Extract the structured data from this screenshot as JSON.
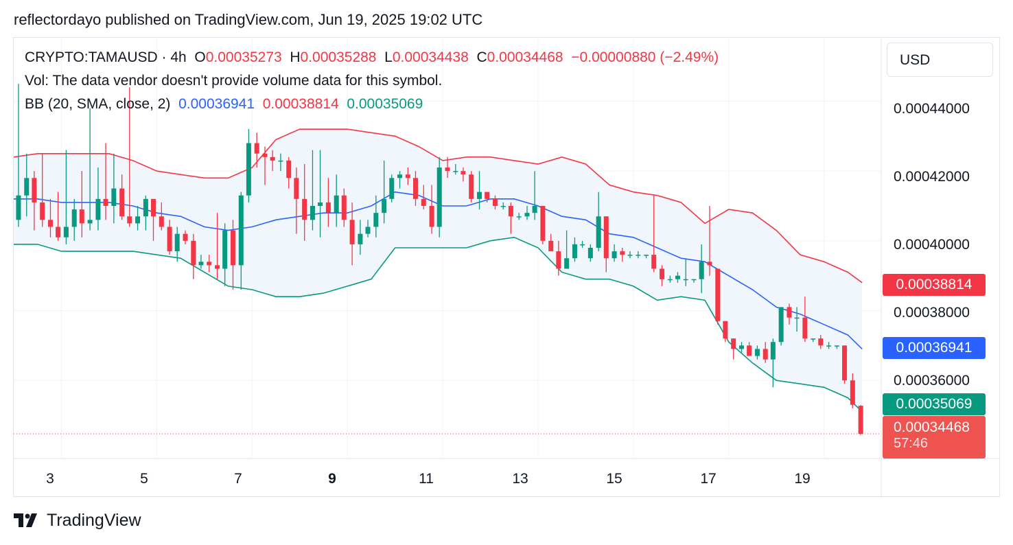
{
  "header": {
    "published_text": "reflectordayo published on TradingView.com, Jun 19, 2025 19:02 UTC"
  },
  "legend": {
    "symbol": "CRYPTO:TAMAUSD · 4h",
    "o_label": "O",
    "o_value": "0.00035273",
    "h_label": "H",
    "h_value": "0.00035288",
    "l_label": "L",
    "l_value": "0.00034438",
    "c_label": "C",
    "c_value": "0.00034468",
    "change": "−0.00000880 (−2.49%)",
    "vol_text": "Vol: The data vendor doesn't provide volume data for this symbol.",
    "bb_label": "BB (20, SMA, close, 2)",
    "bb_basis": "0.00036941",
    "bb_upper": "0.00038814",
    "bb_lower": "0.00035069"
  },
  "currency": "USD",
  "price_scale": {
    "ticks": [
      "0.00044000",
      "0.00042000",
      "0.00040000",
      "0.00038000",
      "0.00036000"
    ],
    "tag_upper": "0.00038814",
    "tag_basis": "0.00036941",
    "tag_lower": "0.00035069",
    "tag_last": "0.00034468",
    "countdown": "57:46"
  },
  "time_scale": {
    "ticks": [
      "3",
      "5",
      "7",
      "9",
      "11",
      "13",
      "15",
      "17",
      "19"
    ]
  },
  "brand": {
    "name": "TradingView"
  },
  "colors": {
    "up": "#089981",
    "down": "#f23645",
    "basis": "#2962ff",
    "upper": "#f23645",
    "lower": "#089981",
    "fill": "#f0f6fc"
  },
  "chart_data": {
    "type": "candlestick",
    "timeframe": "4h",
    "y_range": [
      0.000338,
      0.000458
    ],
    "x_range_days": [
      2.0,
      20.2
    ],
    "x_ticks": [
      3,
      5,
      7,
      9,
      11,
      13,
      15,
      17,
      19
    ],
    "y_ticks": [
      0.00044,
      0.00042,
      0.0004,
      0.00038,
      0.00036
    ],
    "candles": [
      [
        2.1,
        0.000406,
        0.000445,
        0.000404,
        0.000413
      ],
      [
        2.27,
        0.000413,
        0.000425,
        0.000407,
        0.000418
      ],
      [
        2.43,
        0.000418,
        0.00042,
        0.000403,
        0.000411
      ],
      [
        2.6,
        0.000411,
        0.000425,
        0.000404,
        0.000406
      ],
      [
        2.77,
        0.000406,
        0.000412,
        0.000401,
        0.000404
      ],
      [
        2.93,
        0.000404,
        0.000414,
        0.0004,
        0.000401
      ],
      [
        3.1,
        0.000401,
        0.000426,
        0.000399,
        0.000404
      ],
      [
        3.27,
        0.000404,
        0.000412,
        0.0004,
        0.000409
      ],
      [
        3.43,
        0.000409,
        0.00042,
        0.000401,
        0.000405
      ],
      [
        3.6,
        0.000405,
        0.000438,
        0.000403,
        0.000406
      ],
      [
        3.77,
        0.000406,
        0.000421,
        0.000403,
        0.000412
      ],
      [
        3.93,
        0.000412,
        0.000428,
        0.000406,
        0.00041
      ],
      [
        4.1,
        0.00041,
        0.000425,
        0.000405,
        0.000415
      ],
      [
        4.27,
        0.000415,
        0.000419,
        0.000406,
        0.000407
      ],
      [
        4.43,
        0.000407,
        0.000444,
        0.000404,
        0.000405
      ],
      [
        4.6,
        0.000405,
        0.00041,
        0.000403,
        0.000407
      ],
      [
        4.77,
        0.000407,
        0.000413,
        0.000403,
        0.000412
      ],
      [
        4.93,
        0.000412,
        0.000412,
        0.0004,
        0.000407
      ],
      [
        5.1,
        0.000407,
        0.000411,
        0.000403,
        0.000404
      ],
      [
        5.27,
        0.000404,
        0.000406,
        0.000396,
        0.000397
      ],
      [
        5.43,
        0.000397,
        0.000404,
        0.000394,
        0.000402
      ],
      [
        5.6,
        0.000402,
        0.000403,
        0.000399,
        0.0004
      ],
      [
        5.77,
        0.0004,
        0.000402,
        0.000389,
        0.000393
      ],
      [
        5.93,
        0.000393,
        0.000396,
        0.000392,
        0.000394
      ],
      [
        6.1,
        0.000394,
        0.000396,
        0.000391,
        0.000393
      ],
      [
        6.27,
        0.000393,
        0.000408,
        0.000389,
        0.000392
      ],
      [
        6.43,
        0.000392,
        0.000405,
        0.000387,
        0.000403
      ],
      [
        6.6,
        0.000403,
        0.000406,
        0.000386,
        0.000393
      ],
      [
        6.77,
        0.000393,
        0.000414,
        0.000386,
        0.000413
      ],
      [
        6.93,
        0.000413,
        0.000432,
        0.000411,
        0.000428
      ],
      [
        7.1,
        0.000428,
        0.000431,
        0.000421,
        0.000425
      ],
      [
        7.27,
        0.000425,
        0.000427,
        0.000416,
        0.000424
      ],
      [
        7.43,
        0.000424,
        0.000426,
        0.00042,
        0.000423
      ],
      [
        7.6,
        0.000423,
        0.000425,
        0.00042,
        0.000423
      ],
      [
        7.77,
        0.000423,
        0.000424,
        0.000415,
        0.000418
      ],
      [
        7.93,
        0.000418,
        0.000421,
        0.000402,
        0.000412
      ],
      [
        8.1,
        0.000412,
        0.000422,
        0.0004,
        0.000406
      ],
      [
        8.27,
        0.000406,
        0.000426,
        0.000403,
        0.00041
      ],
      [
        8.43,
        0.00041,
        0.000426,
        0.000401,
        0.000411
      ],
      [
        8.6,
        0.000411,
        0.000418,
        0.000404,
        0.000408
      ],
      [
        8.77,
        0.000408,
        0.000419,
        0.000404,
        0.000413
      ],
      [
        8.93,
        0.000413,
        0.000415,
        0.000404,
        0.000406
      ],
      [
        9.1,
        0.000406,
        0.000411,
        0.000393,
        0.000399
      ],
      [
        9.27,
        0.000399,
        0.000406,
        0.000396,
        0.000402
      ],
      [
        9.43,
        0.000402,
        0.000406,
        0.000401,
        0.000404
      ],
      [
        9.6,
        0.000404,
        0.000413,
        0.000401,
        0.000408
      ],
      [
        9.77,
        0.000408,
        0.000423,
        0.000405,
        0.000412
      ],
      [
        9.93,
        0.000412,
        0.000419,
        0.000411,
        0.000418
      ],
      [
        10.1,
        0.000418,
        0.00042,
        0.000415,
        0.000419
      ],
      [
        10.27,
        0.000419,
        0.000421,
        0.000416,
        0.000418
      ],
      [
        10.43,
        0.000418,
        0.00042,
        0.00041,
        0.000412
      ],
      [
        10.6,
        0.000412,
        0.000416,
        0.000409,
        0.00041
      ],
      [
        10.77,
        0.00041,
        0.000416,
        0.000402,
        0.000404
      ],
      [
        10.93,
        0.000404,
        0.000424,
        0.000401,
        0.000421
      ],
      [
        11.1,
        0.000421,
        0.000424,
        0.000418,
        0.00042
      ],
      [
        11.27,
        0.00042,
        0.000422,
        0.000419,
        0.00042
      ],
      [
        11.43,
        0.00042,
        0.000421,
        0.000417,
        0.000419
      ],
      [
        11.6,
        0.000419,
        0.00042,
        0.000411,
        0.000412
      ],
      [
        11.77,
        0.000412,
        0.00042,
        0.000409,
        0.000414
      ],
      [
        11.93,
        0.000414,
        0.000414,
        0.000411,
        0.000412
      ],
      [
        12.1,
        0.000412,
        0.000413,
        0.000409,
        0.00041
      ],
      [
        12.27,
        0.00041,
        0.000411,
        0.000409,
        0.00041
      ],
      [
        12.43,
        0.00041,
        0.000411,
        0.000402,
        0.000407
      ],
      [
        12.6,
        0.000407,
        0.000408,
        0.000406,
        0.000407
      ],
      [
        12.77,
        0.000407,
        0.00041,
        0.000406,
        0.000408
      ],
      [
        12.93,
        0.000408,
        0.00042,
        0.000406,
        0.00041
      ],
      [
        13.1,
        0.00041,
        0.00041,
        0.000399,
        0.0004
      ],
      [
        13.27,
        0.0004,
        0.000402,
        0.000397,
        0.000397
      ],
      [
        13.43,
        0.000397,
        0.0004,
        0.00039,
        0.000392
      ],
      [
        13.6,
        0.000392,
        0.000403,
        0.000392,
        0.000395
      ],
      [
        13.77,
        0.000395,
        0.000401,
        0.000394,
        0.000399
      ],
      [
        13.93,
        0.000399,
        0.0004,
        0.000398,
        0.000399
      ],
      [
        14.1,
        0.000395,
        0.000399,
        0.000394,
        0.000398
      ],
      [
        14.27,
        0.000398,
        0.000414,
        0.000397,
        0.000407
      ],
      [
        14.43,
        0.000407,
        0.000407,
        0.000391,
        0.000395
      ],
      [
        14.6,
        0.000395,
        0.000399,
        0.000394,
        0.000397
      ],
      [
        14.77,
        0.000397,
        0.000398,
        0.000394,
        0.000396
      ],
      [
        14.93,
        0.000396,
        0.000397,
        0.000395,
        0.000396
      ],
      [
        15.1,
        0.000396,
        0.000397,
        0.000395,
        0.000396
      ],
      [
        15.27,
        0.000396,
        0.000396,
        0.000395,
        0.000396
      ],
      [
        15.43,
        0.000396,
        0.000413,
        0.000391,
        0.000392
      ],
      [
        15.6,
        0.000392,
        0.000393,
        0.000387,
        0.000389
      ],
      [
        15.77,
        0.000389,
        0.00039,
        0.000388,
        0.000389
      ],
      [
        15.93,
        0.000389,
        0.000391,
        0.000388,
        0.00039
      ],
      [
        16.1,
        0.000389,
        0.000395,
        0.000387,
        0.000389
      ],
      [
        16.27,
        0.000389,
        0.000389,
        0.000388,
        0.000389
      ],
      [
        16.43,
        0.000389,
        0.000399,
        0.000385,
        0.000394
      ],
      [
        16.6,
        0.000394,
        0.00041,
        0.00039,
        0.000393
      ],
      [
        16.77,
        0.000392,
        0.000392,
        0.000376,
        0.000377
      ],
      [
        16.93,
        0.000377,
        0.000377,
        0.000371,
        0.000372
      ],
      [
        17.1,
        0.000372,
        0.000372,
        0.000366,
        0.000369
      ],
      [
        17.27,
        0.000369,
        0.000371,
        0.000368,
        0.00037
      ],
      [
        17.43,
        0.00037,
        0.000371,
        0.000367,
        0.000367
      ],
      [
        17.6,
        0.000367,
        0.00037,
        0.000366,
        0.000369
      ],
      [
        17.77,
        0.000369,
        0.000371,
        0.000365,
        0.000366
      ],
      [
        17.93,
        0.000366,
        0.000372,
        0.000358,
        0.000371
      ],
      [
        18.1,
        0.000371,
        0.000381,
        0.00037,
        0.000381
      ],
      [
        18.27,
        0.000381,
        0.000382,
        0.000376,
        0.000378
      ],
      [
        18.43,
        0.000378,
        0.000381,
        0.000374,
        0.000378
      ],
      [
        18.6,
        0.000378,
        0.000384,
        0.000371,
        0.000372
      ],
      [
        18.77,
        0.000372,
        0.000372,
        0.000371,
        0.000372
      ],
      [
        18.93,
        0.000372,
        0.000373,
        0.000369,
        0.00037
      ],
      [
        19.1,
        0.00037,
        0.000371,
        0.000369,
        0.00037
      ],
      [
        19.27,
        0.00037,
        0.00037,
        0.000369,
        0.00037
      ],
      [
        19.43,
        0.00037,
        0.00037,
        0.000359,
        0.00036
      ],
      [
        19.6,
        0.00036,
        0.000362,
        0.000352,
        0.000353
      ],
      [
        19.77,
        0.00035273,
        0.00035288,
        0.00034438,
        0.00034468
      ]
    ],
    "bollinger": {
      "x": [
        2.0,
        2.5,
        3.0,
        3.5,
        4.0,
        4.5,
        5.0,
        5.5,
        6.0,
        6.5,
        7.0,
        7.5,
        8.0,
        8.5,
        9.0,
        9.5,
        10.0,
        10.5,
        11.0,
        11.5,
        12.0,
        12.5,
        13.0,
        13.5,
        14.0,
        14.5,
        15.0,
        15.5,
        16.0,
        16.5,
        17.0,
        17.5,
        18.0,
        18.5,
        19.0,
        19.5,
        19.8
      ],
      "upper": [
        0.000424,
        0.000425,
        0.000425,
        0.000425,
        0.000425,
        0.000423,
        0.00042,
        0.000419,
        0.000418,
        0.000418,
        0.000421,
        0.000429,
        0.000432,
        0.000432,
        0.000432,
        0.000431,
        0.00043,
        0.000427,
        0.000423,
        0.000424,
        0.000424,
        0.000423,
        0.000422,
        0.000424,
        0.000422,
        0.000416,
        0.000414,
        0.000413,
        0.000411,
        0.000405,
        0.000409,
        0.000408,
        0.000403,
        0.000396,
        0.000394,
        0.000391,
        0.000388
      ],
      "basis": [
        0.000412,
        0.000412,
        0.000411,
        0.000411,
        0.000411,
        0.00041,
        0.000408,
        0.000407,
        0.000404,
        0.000403,
        0.000404,
        0.000406,
        0.000407,
        0.000408,
        0.000408,
        0.00041,
        0.000414,
        0.000413,
        0.00041,
        0.00041,
        0.000412,
        0.000412,
        0.00041,
        0.000407,
        0.000406,
        0.000402,
        0.000401,
        0.000398,
        0.000395,
        0.000394,
        0.00039,
        0.000386,
        0.000381,
        0.000379,
        0.000376,
        0.000373,
        0.000369
      ],
      "lower": [
        0.000399,
        0.000399,
        0.000397,
        0.000397,
        0.000397,
        0.000397,
        0.000396,
        0.000395,
        0.000391,
        0.000387,
        0.000386,
        0.000384,
        0.000384,
        0.000385,
        0.000387,
        0.000389,
        0.000398,
        0.000398,
        0.000398,
        0.000398,
        0.0004,
        0.000401,
        0.000398,
        0.000391,
        0.000389,
        0.000389,
        0.000387,
        0.000383,
        0.000384,
        0.000383,
        0.000371,
        0.000365,
        0.00036,
        0.000359,
        0.000358,
        0.000355,
        0.000351
      ]
    }
  }
}
